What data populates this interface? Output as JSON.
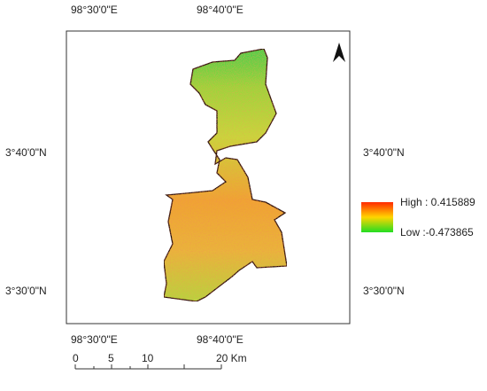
{
  "coordinates": {
    "top": [
      "98°30'0\"E",
      "98°40'0\"E"
    ],
    "bottom": [
      "98°30'0\"E",
      "98°40'0\"E"
    ],
    "left": [
      "3°40'0\"N",
      "3°30'0\"N"
    ],
    "right": [
      "3°40'0\"N",
      "3°30'0\"N"
    ]
  },
  "legend": {
    "high": "High : 0.415889",
    "low": "Low :-0.473865"
  },
  "scale_bar": {
    "labels": [
      "0",
      "5",
      "10",
      "20 Km"
    ]
  }
}
